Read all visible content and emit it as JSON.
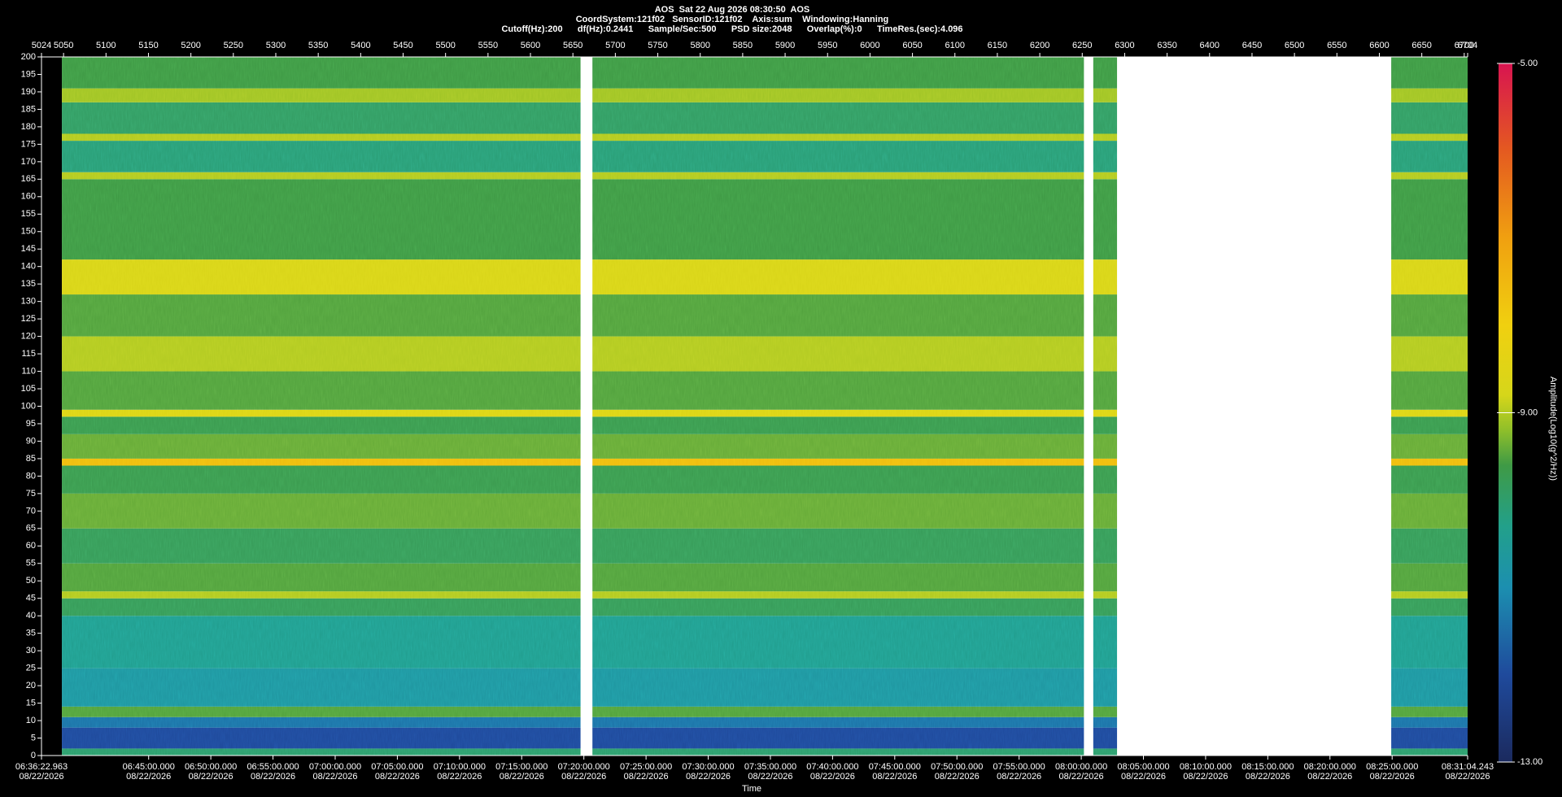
{
  "chart_data": {
    "type": "spectrogram",
    "title": "AOS  Sat 22 Aug 2026 08:30:50  AOS",
    "subtitle": [
      "CoordSystem:121f02   SensorID:121f02    Axis:sum    Windowing:Hanning",
      "Cutoff(Hz):200      df(Hz):0.2441      Sample/Sec:500      PSD size:2048      Overlap(%):0      TimeRes.(sec):4.096"
    ],
    "xlim": [
      5024,
      6704
    ],
    "xticks": [
      5024,
      5050,
      5100,
      5150,
      5200,
      5250,
      5300,
      5350,
      5400,
      5450,
      5500,
      5550,
      5600,
      5650,
      5700,
      5750,
      5800,
      5850,
      5900,
      5950,
      6000,
      6050,
      6100,
      6150,
      6200,
      6250,
      6300,
      6350,
      6400,
      6450,
      6500,
      6550,
      6600,
      6650,
      6700,
      6704
    ],
    "x2lim": [
      23782.963,
      30664.243
    ],
    "x2ticks": [
      {
        "value": 23782.963,
        "label": "06:36:22.963",
        "date": "08/22/2026"
      },
      {
        "value": 24300,
        "label": "06:45:00.000",
        "date": "08/22/2026"
      },
      {
        "value": 24600,
        "label": "06:50:00.000",
        "date": "08/22/2026"
      },
      {
        "value": 24900,
        "label": "06:55:00.000",
        "date": "08/22/2026"
      },
      {
        "value": 25200,
        "label": "07:00:00.000",
        "date": "08/22/2026"
      },
      {
        "value": 25500,
        "label": "07:05:00.000",
        "date": "08/22/2026"
      },
      {
        "value": 25800,
        "label": "07:10:00.000",
        "date": "08/22/2026"
      },
      {
        "value": 26100,
        "label": "07:15:00.000",
        "date": "08/22/2026"
      },
      {
        "value": 26400,
        "label": "07:20:00.000",
        "date": "08/22/2026"
      },
      {
        "value": 26700,
        "label": "07:25:00.000",
        "date": "08/22/2026"
      },
      {
        "value": 27000,
        "label": "07:30:00.000",
        "date": "08/22/2026"
      },
      {
        "value": 27300,
        "label": "07:35:00.000",
        "date": "08/22/2026"
      },
      {
        "value": 27600,
        "label": "07:40:00.000",
        "date": "08/22/2026"
      },
      {
        "value": 27900,
        "label": "07:45:00.000",
        "date": "08/22/2026"
      },
      {
        "value": 28200,
        "label": "07:50:00.000",
        "date": "08/22/2026"
      },
      {
        "value": 28500,
        "label": "07:55:00.000",
        "date": "08/22/2026"
      },
      {
        "value": 28800,
        "label": "08:00:00.000",
        "date": "08/22/2026"
      },
      {
        "value": 29100,
        "label": "08:05:00.000",
        "date": "08/22/2026"
      },
      {
        "value": 29400,
        "label": "08:10:00.000",
        "date": "08/22/2026"
      },
      {
        "value": 29700,
        "label": "08:15:00.000",
        "date": "08/22/2026"
      },
      {
        "value": 30000,
        "label": "08:20:00.000",
        "date": "08/22/2026"
      },
      {
        "value": 30300,
        "label": "08:25:00.000",
        "date": "08/22/2026"
      },
      {
        "value": 30664.243,
        "label": "08:31:04.243",
        "date": "08/22/2026"
      }
    ],
    "xlabel": "Time",
    "ylim": [
      0,
      200
    ],
    "yticks": [
      0,
      5,
      10,
      15,
      20,
      25,
      30,
      35,
      40,
      45,
      50,
      55,
      60,
      65,
      70,
      75,
      80,
      85,
      90,
      95,
      100,
      105,
      110,
      115,
      120,
      125,
      130,
      135,
      140,
      145,
      150,
      155,
      160,
      165,
      170,
      175,
      180,
      185,
      190,
      195,
      200
    ],
    "segments": [
      [
        5048,
        5659
      ],
      [
        5673,
        6252
      ],
      [
        6263,
        6291
      ],
      [
        6614,
        6704
      ]
    ],
    "bands": [
      {
        "range": [
          0,
          2
        ],
        "value": -10.0
      },
      {
        "range": [
          2,
          8
        ],
        "value": -12.0
      },
      {
        "range": [
          8,
          11
        ],
        "value": -11.4
      },
      {
        "range": [
          11,
          14
        ],
        "value": -9.5
      },
      {
        "range": [
          14,
          25
        ],
        "value": -10.7
      },
      {
        "range": [
          25,
          40
        ],
        "value": -10.4
      },
      {
        "range": [
          40,
          45
        ],
        "value": -9.8
      },
      {
        "range": [
          45,
          47
        ],
        "value": -9.0
      },
      {
        "range": [
          47,
          55
        ],
        "value": -9.5
      },
      {
        "range": [
          55,
          65
        ],
        "value": -9.8
      },
      {
        "range": [
          65,
          75
        ],
        "value": -9.4
      },
      {
        "range": [
          75,
          83
        ],
        "value": -9.7
      },
      {
        "range": [
          83,
          85
        ],
        "value": -7.6
      },
      {
        "range": [
          85,
          92
        ],
        "value": -9.4
      },
      {
        "range": [
          92,
          97
        ],
        "value": -9.7
      },
      {
        "range": [
          97,
          99
        ],
        "value": -8.6
      },
      {
        "range": [
          99,
          110
        ],
        "value": -9.5
      },
      {
        "range": [
          110,
          120
        ],
        "value": -9.0
      },
      {
        "range": [
          120,
          132
        ],
        "value": -9.5
      },
      {
        "range": [
          132,
          142
        ],
        "value": -8.7
      },
      {
        "range": [
          142,
          165
        ],
        "value": -9.6
      },
      {
        "range": [
          165,
          167
        ],
        "value": -9.0
      },
      {
        "range": [
          167,
          176
        ],
        "value": -10.1
      },
      {
        "range": [
          176,
          178
        ],
        "value": -9.0
      },
      {
        "range": [
          178,
          187
        ],
        "value": -9.9
      },
      {
        "range": [
          187,
          191
        ],
        "value": -9.1
      },
      {
        "range": [
          191,
          200
        ],
        "value": -9.6
      }
    ],
    "clim": [
      -13,
      -5
    ],
    "cticks": [
      {
        "value": -5,
        "label": "-5.00"
      },
      {
        "value": -9,
        "label": "-9.00"
      },
      {
        "value": -13,
        "label": "-13.00"
      }
    ],
    "clabel": "Amplitude(Log10(g^2/Hz))",
    "colormap": [
      {
        "value": -13,
        "color": "#1b2a5e"
      },
      {
        "value": -12,
        "color": "#1f4a9c"
      },
      {
        "value": -11,
        "color": "#1c8fb0"
      },
      {
        "value": -10.3,
        "color": "#22a08a"
      },
      {
        "value": -9.6,
        "color": "#3f9a45"
      },
      {
        "value": -9.2,
        "color": "#8fbf2a"
      },
      {
        "value": -8.8,
        "color": "#d6d61a"
      },
      {
        "value": -8,
        "color": "#f0d010"
      },
      {
        "value": -7,
        "color": "#f0a010"
      },
      {
        "value": -6,
        "color": "#e45a20"
      },
      {
        "value": -5,
        "color": "#d81450"
      }
    ],
    "gap_color": "#ffffff"
  }
}
